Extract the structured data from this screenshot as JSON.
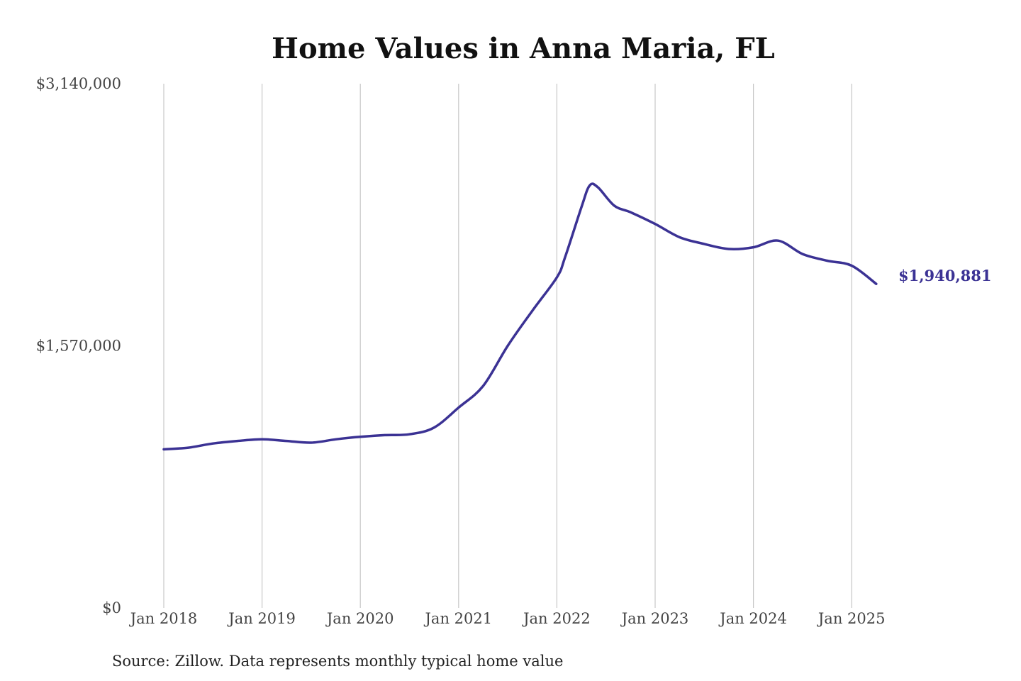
{
  "chart_data": {
    "type": "line",
    "title": "Home Values in Anna Maria, FL",
    "source": "Source: Zillow. Data represents monthly typical home value",
    "xlabel": "",
    "ylabel": "",
    "ylim": [
      0,
      3140000
    ],
    "y_ticks": [
      {
        "value": 0,
        "label": "$0"
      },
      {
        "value": 1570000,
        "label": "$1,570,000"
      },
      {
        "value": 3140000,
        "label": "$3,140,000"
      }
    ],
    "x_ticks": [
      {
        "date": "2018-01",
        "label": "Jan 2018"
      },
      {
        "date": "2019-01",
        "label": "Jan 2019"
      },
      {
        "date": "2020-01",
        "label": "Jan 2020"
      },
      {
        "date": "2021-01",
        "label": "Jan 2021"
      },
      {
        "date": "2022-01",
        "label": "Jan 2022"
      },
      {
        "date": "2023-01",
        "label": "Jan 2023"
      },
      {
        "date": "2024-01",
        "label": "Jan 2024"
      },
      {
        "date": "2025-01",
        "label": "Jan 2025"
      }
    ],
    "x_grid": true,
    "y_grid": false,
    "line_color": "#3b3294",
    "end_label": "$1,940,881",
    "series": [
      {
        "name": "",
        "points": [
          {
            "x": "2018-01",
            "y": 950000
          },
          {
            "x": "2018-04",
            "y": 960000
          },
          {
            "x": "2018-07",
            "y": 985000
          },
          {
            "x": "2018-10",
            "y": 1000000
          },
          {
            "x": "2019-01",
            "y": 1010000
          },
          {
            "x": "2019-04",
            "y": 1000000
          },
          {
            "x": "2019-07",
            "y": 990000
          },
          {
            "x": "2019-10",
            "y": 1010000
          },
          {
            "x": "2020-01",
            "y": 1025000
          },
          {
            "x": "2020-04",
            "y": 1035000
          },
          {
            "x": "2020-07",
            "y": 1040000
          },
          {
            "x": "2020-10",
            "y": 1080000
          },
          {
            "x": "2021-01",
            "y": 1200000
          },
          {
            "x": "2021-04",
            "y": 1330000
          },
          {
            "x": "2021-07",
            "y": 1570000
          },
          {
            "x": "2021-10",
            "y": 1780000
          },
          {
            "x": "2022-01",
            "y": 1980000
          },
          {
            "x": "2022-02",
            "y": 2100000
          },
          {
            "x": "2022-04",
            "y": 2400000
          },
          {
            "x": "2022-05",
            "y": 2530000
          },
          {
            "x": "2022-06",
            "y": 2520000
          },
          {
            "x": "2022-08",
            "y": 2410000
          },
          {
            "x": "2022-10",
            "y": 2370000
          },
          {
            "x": "2023-01",
            "y": 2300000
          },
          {
            "x": "2023-04",
            "y": 2220000
          },
          {
            "x": "2023-07",
            "y": 2180000
          },
          {
            "x": "2023-10",
            "y": 2150000
          },
          {
            "x": "2024-01",
            "y": 2160000
          },
          {
            "x": "2024-04",
            "y": 2200000
          },
          {
            "x": "2024-07",
            "y": 2120000
          },
          {
            "x": "2024-10",
            "y": 2080000
          },
          {
            "x": "2025-01",
            "y": 2050000
          },
          {
            "x": "2025-04",
            "y": 1940881
          }
        ]
      }
    ]
  }
}
